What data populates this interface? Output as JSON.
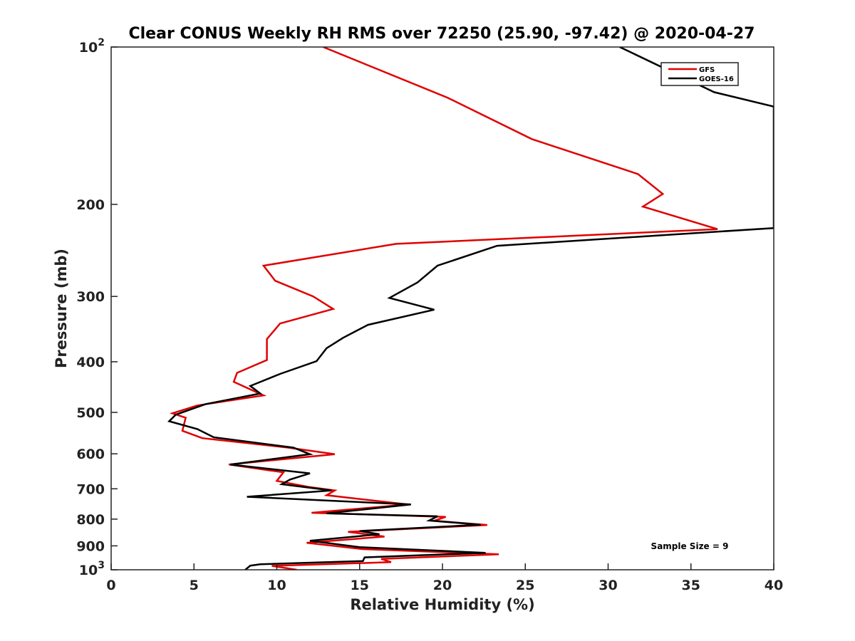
{
  "chart_data": {
    "type": "line",
    "title": "Clear CONUS Weekly RH RMS over 72250 (25.90, -97.42) @ 2020-04-27",
    "xlabel": "Relative Humidity (%)",
    "ylabel": "Pressure (mb)",
    "xlim": [
      0,
      40
    ],
    "ylim": [
      100,
      1000
    ],
    "y_scale": "log",
    "y_reversed": true,
    "grid": false,
    "legend_position": "top-right",
    "x_ticks": [
      0,
      5,
      10,
      15,
      20,
      25,
      30,
      35,
      40
    ],
    "x_tick_labels": [
      "0",
      "5",
      "10",
      "15",
      "20",
      "25",
      "30",
      "35",
      "40"
    ],
    "y_ticks": [
      100,
      200,
      300,
      400,
      500,
      600,
      700,
      800,
      900,
      1000
    ],
    "y_tick_labels": [
      {
        "base": "10",
        "exp": "2"
      },
      {
        "base": "200",
        "exp": ""
      },
      {
        "base": "300",
        "exp": ""
      },
      {
        "base": "400",
        "exp": ""
      },
      {
        "base": "500",
        "exp": ""
      },
      {
        "base": "600",
        "exp": ""
      },
      {
        "base": "700",
        "exp": ""
      },
      {
        "base": "800",
        "exp": ""
      },
      {
        "base": "900",
        "exp": ""
      },
      {
        "base": "10",
        "exp": "3"
      }
    ],
    "series": [
      {
        "name": "GFS",
        "color": "#e00000",
        "points": [
          [
            12.8,
            100
          ],
          [
            20.3,
            125
          ],
          [
            25.4,
            150
          ],
          [
            31.8,
            175
          ],
          [
            33.3,
            191
          ],
          [
            32.1,
            202
          ],
          [
            36.6,
            223
          ],
          [
            17.2,
            238
          ],
          [
            9.2,
            262
          ],
          [
            9.9,
            280
          ],
          [
            12.2,
            300
          ],
          [
            13.4,
            317
          ],
          [
            10.2,
            338
          ],
          [
            9.4,
            362
          ],
          [
            9.4,
            397
          ],
          [
            7.6,
            420
          ],
          [
            7.4,
            437
          ],
          [
            9.2,
            464
          ],
          [
            5.2,
            485
          ],
          [
            3.7,
            502
          ],
          [
            4.5,
            512
          ],
          [
            4.3,
            542
          ],
          [
            5.5,
            560
          ],
          [
            10.7,
            584
          ],
          [
            13.5,
            601
          ],
          [
            7.1,
            629
          ],
          [
            10.4,
            651
          ],
          [
            10.0,
            676
          ],
          [
            11.9,
            694
          ],
          [
            13.5,
            705
          ],
          [
            13.0,
            720
          ],
          [
            17.9,
            750
          ],
          [
            12.1,
            778
          ],
          [
            20.2,
            792
          ],
          [
            19.5,
            806
          ],
          [
            22.7,
            821
          ],
          [
            14.3,
            846
          ],
          [
            16.5,
            864
          ],
          [
            11.8,
            888
          ],
          [
            15.2,
            913
          ],
          [
            23.4,
            934
          ],
          [
            16.3,
            953
          ],
          [
            16.9,
            967
          ],
          [
            9.7,
            983
          ],
          [
            11.2,
            1000
          ]
        ]
      },
      {
        "name": "GOES-16",
        "color": "#000000",
        "points": [
          [
            30.7,
            100
          ],
          [
            36.4,
            122
          ],
          [
            40.0,
            130
          ],
          [
            40.0,
            222
          ],
          [
            23.3,
            240
          ],
          [
            19.7,
            262
          ],
          [
            18.5,
            282
          ],
          [
            16.8,
            302
          ],
          [
            19.5,
            318
          ],
          [
            15.5,
            340
          ],
          [
            14.0,
            360
          ],
          [
            13.0,
            377
          ],
          [
            12.4,
            399
          ],
          [
            10.2,
            422
          ],
          [
            8.4,
            445
          ],
          [
            9.0,
            460
          ],
          [
            5.7,
            482
          ],
          [
            3.9,
            505
          ],
          [
            3.5,
            520
          ],
          [
            5.2,
            538
          ],
          [
            6.2,
            558
          ],
          [
            11.0,
            584
          ],
          [
            12.0,
            601
          ],
          [
            7.2,
            629
          ],
          [
            12.0,
            654
          ],
          [
            10.8,
            672
          ],
          [
            10.3,
            686
          ],
          [
            13.3,
            705
          ],
          [
            8.2,
            725
          ],
          [
            18.1,
            750
          ],
          [
            13.0,
            780
          ],
          [
            19.7,
            790
          ],
          [
            19.2,
            805
          ],
          [
            22.3,
            820
          ],
          [
            15.0,
            843
          ],
          [
            16.2,
            855
          ],
          [
            12.0,
            880
          ],
          [
            15.0,
            905
          ],
          [
            22.6,
            928
          ],
          [
            15.3,
            947
          ],
          [
            15.2,
            962
          ],
          [
            9.0,
            976
          ],
          [
            8.4,
            982
          ],
          [
            8.1,
            1000
          ]
        ]
      }
    ],
    "annotations": [
      "Sample Size = 9"
    ]
  }
}
